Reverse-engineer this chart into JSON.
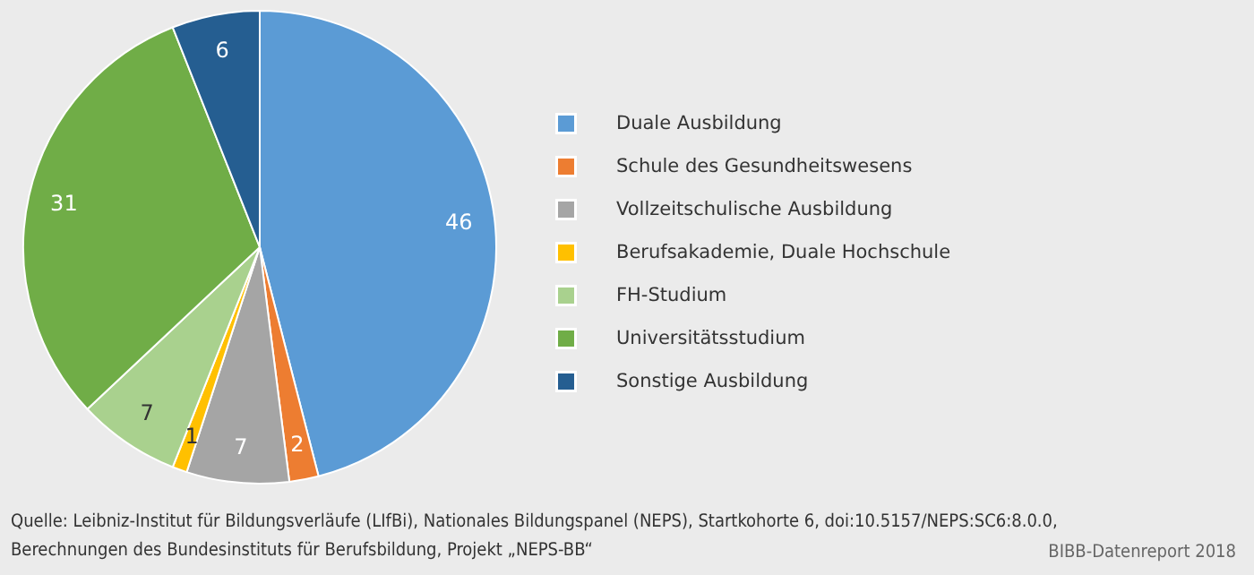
{
  "chart_data": {
    "type": "pie",
    "categories": [
      "Duale Ausbildung",
      "Schule des Gesundheitswesens",
      "Vollzeitschulische Ausbildung",
      "Berufsakademie, Duale Hochschule",
      "FH-Studium",
      "Universitätsstudium",
      "Sonstige Ausbildung"
    ],
    "values": [
      46,
      2,
      7,
      1,
      7,
      31,
      6
    ],
    "colors": [
      "#5b9bd5",
      "#ed7d31",
      "#a5a5a5",
      "#ffc000",
      "#a9d18e",
      "#70ad47",
      "#255e91"
    ],
    "data_labels": true,
    "legend": "right",
    "annotations": [
      "Quelle: Leibniz-Institut für Bildungsverläufe (LIfBi), Nationales Bildungspanel (NEPS), Startkohorte 6, doi:10.5157/NEPS:SC6:8.0.0,\nBerechnungen des Bundesinstituts für Berufsbildung, Projekt „NEPS-BB“",
      "BIBB-Datenreport 2018"
    ]
  }
}
